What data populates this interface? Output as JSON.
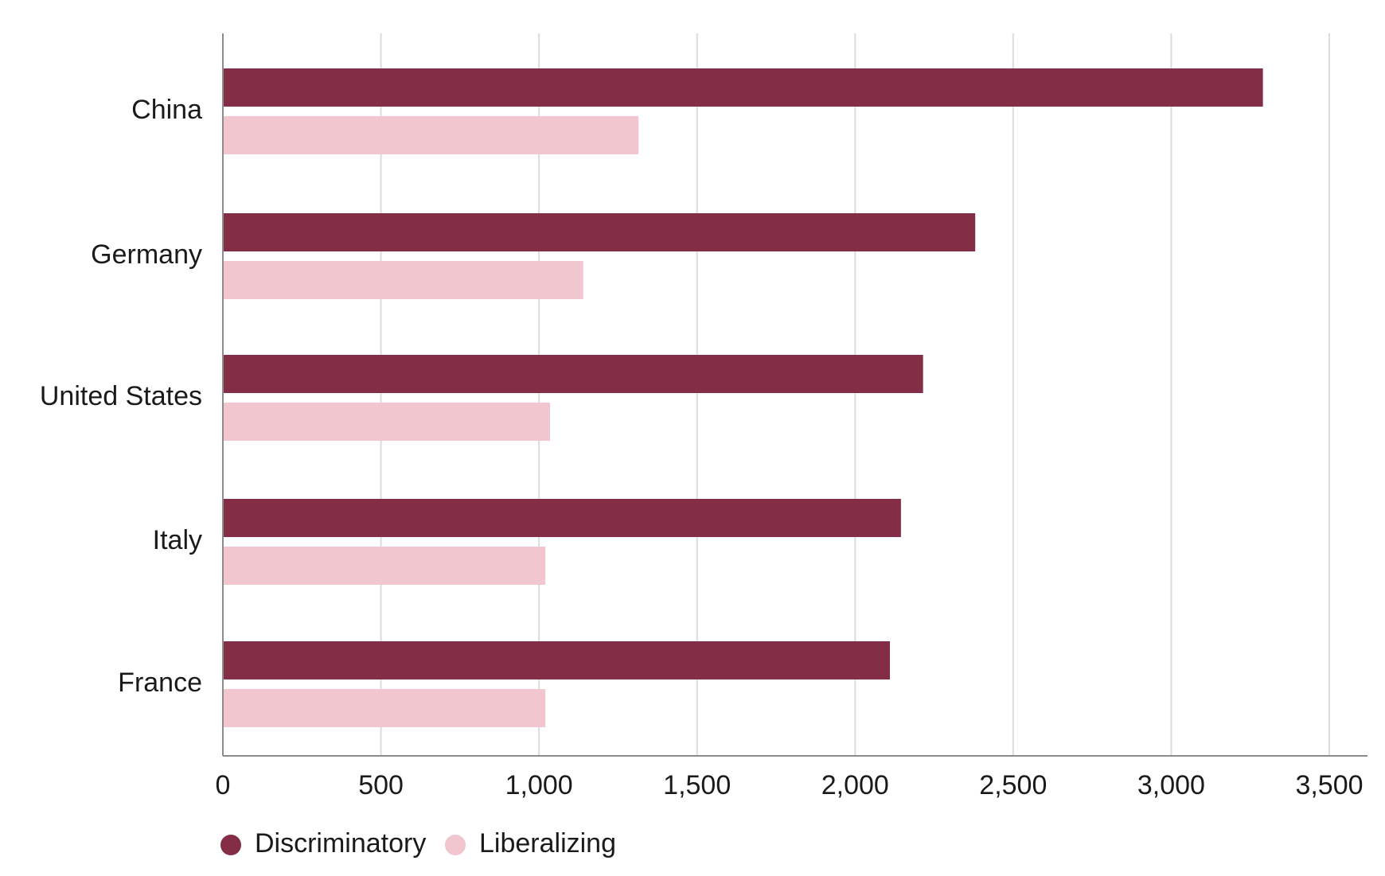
{
  "chart_data": {
    "type": "bar",
    "orientation": "horizontal",
    "categories": [
      "China",
      "Germany",
      "United States",
      "Italy",
      "France"
    ],
    "series": [
      {
        "name": "Discriminatory",
        "color": "#842d46",
        "values": [
          3290,
          2380,
          2215,
          2145,
          2110
        ]
      },
      {
        "name": "Liberalizing",
        "color": "#f1c6ce",
        "values": [
          1315,
          1140,
          1035,
          1020,
          1020
        ]
      }
    ],
    "xlim": [
      0,
      3500
    ],
    "xticks": [
      0,
      500,
      1000,
      1500,
      2000,
      2500,
      3000,
      3500
    ],
    "xtick_labels": [
      "0",
      "500",
      "1,000",
      "1,500",
      "2,000",
      "2,500",
      "3,000",
      "3,500"
    ],
    "grid": "vertical",
    "legend_position": "bottom-left"
  }
}
